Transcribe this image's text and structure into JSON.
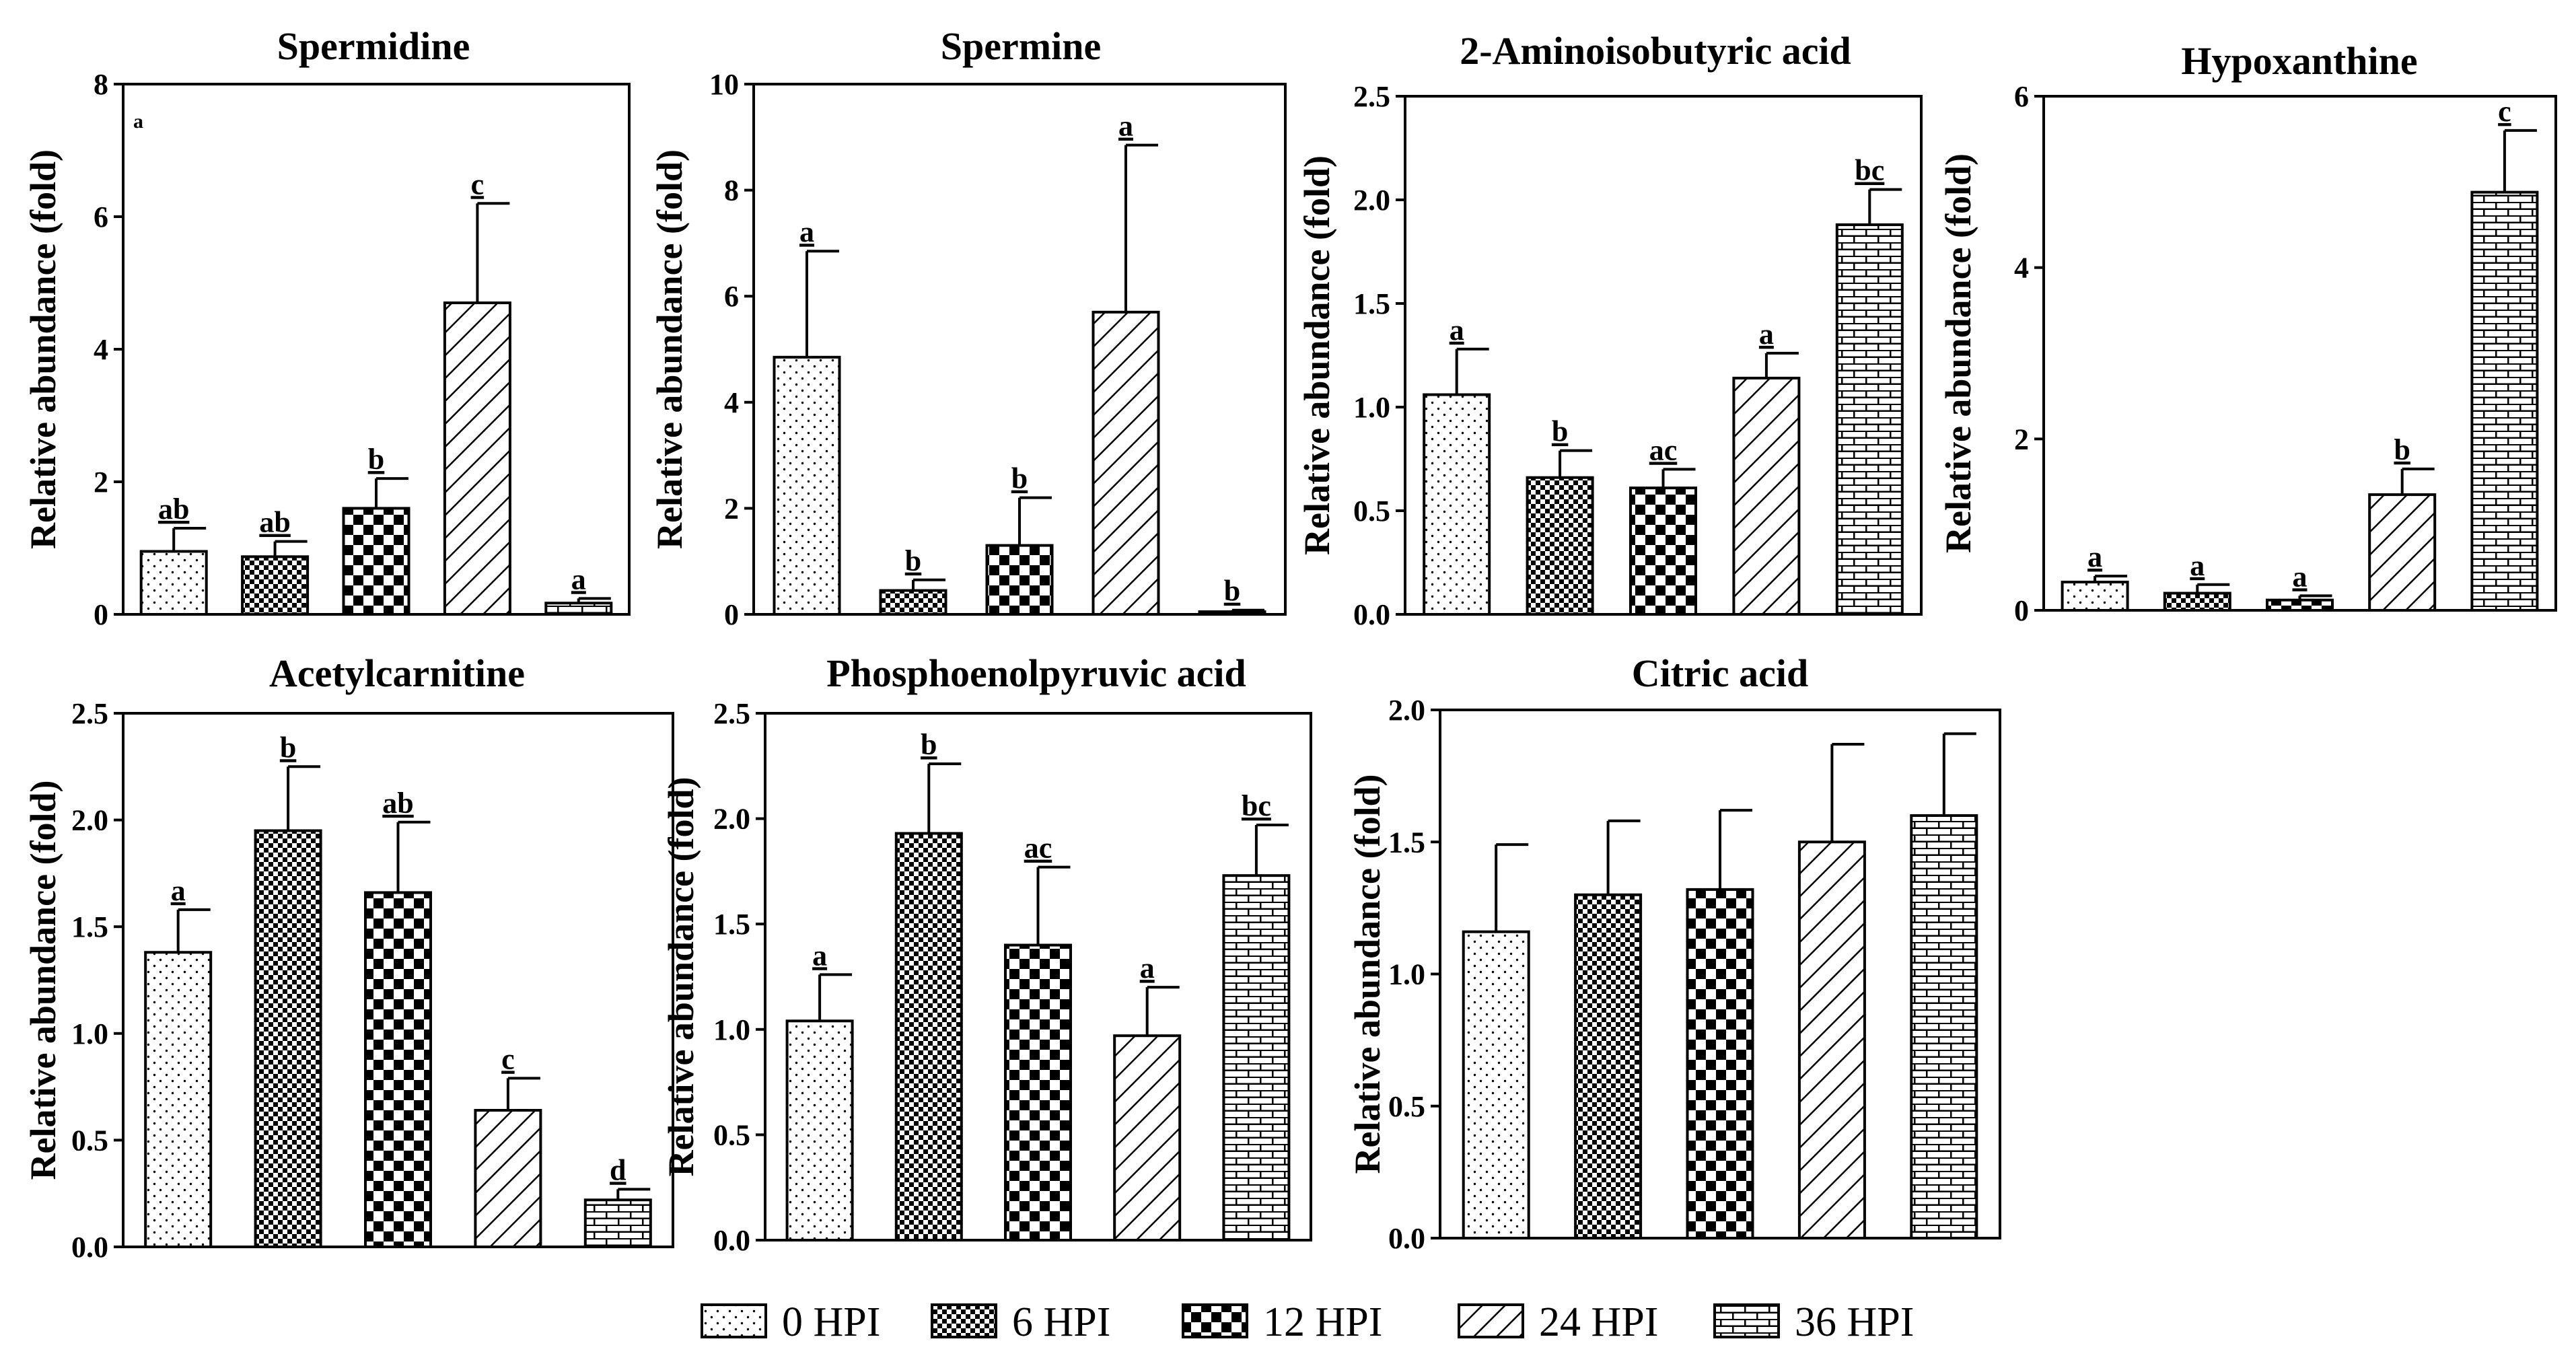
{
  "figure": {
    "legend": [
      {
        "label": "0 HPI",
        "pattern": "dots"
      },
      {
        "label": "6 HPI",
        "pattern": "fine-check"
      },
      {
        "label": "12 HPI",
        "pattern": "coarse-check"
      },
      {
        "label": "24 HPI",
        "pattern": "diagonal"
      },
      {
        "label": "36 HPI",
        "pattern": "brick"
      }
    ],
    "colors": {
      "stroke": "#000000",
      "background": "#ffffff"
    }
  },
  "chart_data": [
    {
      "type": "bar",
      "title": "Spermidine",
      "ylabel": "Relative abundance (fold)",
      "ylim": [
        0,
        8
      ],
      "yticks": [
        "0",
        "2",
        "4",
        "6",
        "8"
      ],
      "categories": [
        "0 HPI",
        "6 HPI",
        "12 HPI",
        "24 HPI",
        "36 HPI"
      ],
      "values": [
        0.95,
        0.87,
        1.6,
        4.7,
        0.17
      ],
      "errors": [
        0.35,
        0.23,
        0.45,
        1.5,
        0.07
      ],
      "labels": [
        "ab",
        "ab",
        "b",
        "c",
        "a"
      ],
      "note": "a"
    },
    {
      "type": "bar",
      "title": "Spermine",
      "ylabel": "Relative abundance (fold)",
      "ylim": [
        0,
        10
      ],
      "yticks": [
        "0",
        "2",
        "4",
        "6",
        "8",
        "10"
      ],
      "categories": [
        "0 HPI",
        "6 HPI",
        "12 HPI",
        "24 HPI",
        "36 HPI"
      ],
      "values": [
        4.85,
        0.45,
        1.3,
        5.7,
        0.05
      ],
      "errors": [
        2.0,
        0.2,
        0.9,
        3.15,
        0.03
      ],
      "labels": [
        "a",
        "b",
        "b",
        "a",
        "b"
      ]
    },
    {
      "type": "bar",
      "title": "2-Aminoisobutyric acid",
      "ylabel": "Relative abundance (fold)",
      "ylim": [
        0,
        2.5
      ],
      "yticks": [
        "0.0",
        "0.5",
        "1.0",
        "1.5",
        "2.0",
        "2.5"
      ],
      "categories": [
        "0 HPI",
        "6 HPI",
        "12 HPI",
        "24 HPI",
        "36 HPI"
      ],
      "values": [
        1.06,
        0.66,
        0.61,
        1.14,
        1.88
      ],
      "errors": [
        0.22,
        0.13,
        0.09,
        0.12,
        0.17
      ],
      "labels": [
        "a",
        "b",
        "ac",
        "a",
        "bc"
      ]
    },
    {
      "type": "bar",
      "title": "Hypoxanthine",
      "ylabel": "Relative abundance (fold)",
      "ylim": [
        0,
        6
      ],
      "yticks": [
        "0",
        "2",
        "4",
        "6"
      ],
      "categories": [
        "0 HPI",
        "6 HPI",
        "12 HPI",
        "24 HPI",
        "36 HPI"
      ],
      "values": [
        0.33,
        0.2,
        0.12,
        1.35,
        4.88
      ],
      "errors": [
        0.07,
        0.1,
        0.05,
        0.3,
        0.72
      ],
      "labels": [
        "a",
        "a",
        "a",
        "b",
        "c"
      ]
    },
    {
      "type": "bar",
      "title": "Acetylcarnitine",
      "ylabel": "Relative abundance (fold)",
      "ylim": [
        0,
        2.5
      ],
      "yticks": [
        "0.0",
        "0.5",
        "1.0",
        "1.5",
        "2.0",
        "2.5"
      ],
      "categories": [
        "0 HPI",
        "6 HPI",
        "12 HPI",
        "24 HPI",
        "36 HPI"
      ],
      "values": [
        1.38,
        1.95,
        1.66,
        0.64,
        0.22
      ],
      "errors": [
        0.2,
        0.3,
        0.33,
        0.15,
        0.05
      ],
      "labels": [
        "a",
        "b",
        "ab",
        "c",
        "d"
      ]
    },
    {
      "type": "bar",
      "title": "Phosphoenolpyruvic acid",
      "ylabel": "Relative abundance (fold)",
      "ylim": [
        0,
        2.5
      ],
      "yticks": [
        "0.0",
        "0.5",
        "1.0",
        "1.5",
        "2.0",
        "2.5"
      ],
      "categories": [
        "0 HPI",
        "6 HPI",
        "12 HPI",
        "24 HPI",
        "36 HPI"
      ],
      "values": [
        1.04,
        1.93,
        1.4,
        0.97,
        1.73
      ],
      "errors": [
        0.22,
        0.33,
        0.37,
        0.23,
        0.24
      ],
      "labels": [
        "a",
        "b",
        "ac",
        "a",
        "bc"
      ]
    },
    {
      "type": "bar",
      "title": "Citric acid",
      "ylabel": "Relative abundance (fold)",
      "ylim": [
        0,
        2.0
      ],
      "yticks": [
        "0.0",
        "0.5",
        "1.0",
        "1.5",
        "2.0"
      ],
      "categories": [
        "0 HPI",
        "6 HPI",
        "12 HPI",
        "24 HPI",
        "36 HPI"
      ],
      "values": [
        1.16,
        1.3,
        1.32,
        1.5,
        1.6
      ],
      "errors": [
        0.33,
        0.28,
        0.3,
        0.37,
        0.31
      ],
      "labels": [
        "",
        "",
        "",
        "",
        ""
      ]
    }
  ]
}
